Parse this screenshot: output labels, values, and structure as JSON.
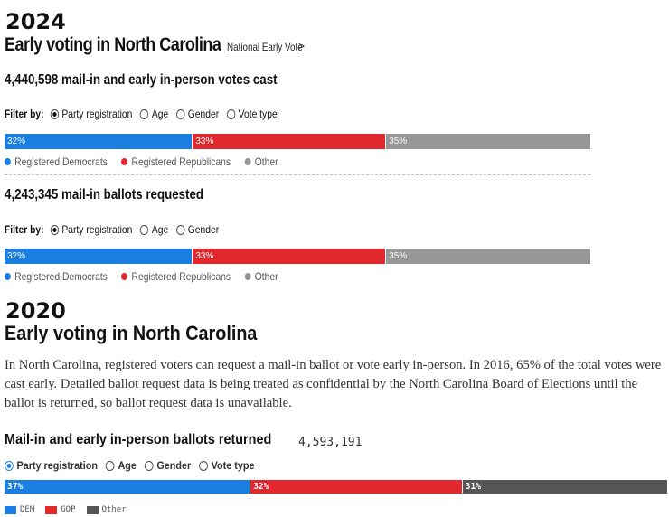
{
  "section2024": {
    "year": "2024",
    "title": "Early voting in North Carolina",
    "nav_link": "National Early Vote",
    "nav_chevron": ">",
    "block1": {
      "count": "4,440,598",
      "label": "mail-in and early in-person votes cast",
      "filter_label": "Filter by:",
      "options": [
        "Party registration",
        "Age",
        "Gender",
        "Vote type"
      ],
      "selected": "Party registration",
      "bar": [
        {
          "label": "32%",
          "value": 32,
          "color": "#1a7fe0"
        },
        {
          "label": "33%",
          "value": 33,
          "color": "#e0282d"
        },
        {
          "label": "35%",
          "value": 35,
          "color": "#969696"
        }
      ],
      "legend": [
        {
          "label": "Registered Democrats",
          "color": "#1a7fe0"
        },
        {
          "label": "Registered Republicans",
          "color": "#e0282d"
        },
        {
          "label": "Other",
          "color": "#969696"
        }
      ]
    },
    "block2": {
      "count": "4,243,345",
      "label": "mail-in ballots requested",
      "filter_label": "Filter by:",
      "options": [
        "Party registration",
        "Age",
        "Gender"
      ],
      "selected": "Party registration",
      "bar": [
        {
          "label": "32%",
          "value": 32,
          "color": "#1a7fe0"
        },
        {
          "label": "33%",
          "value": 33,
          "color": "#e0282d"
        },
        {
          "label": "35%",
          "value": 35,
          "color": "#969696"
        }
      ],
      "legend": [
        {
          "label": "Registered Democrats",
          "color": "#1a7fe0"
        },
        {
          "label": "Registered Republicans",
          "color": "#e0282d"
        },
        {
          "label": "Other",
          "color": "#969696"
        }
      ]
    }
  },
  "section2020": {
    "year": "2020",
    "title": "Early voting in North Carolina",
    "paragraph": "In North Carolina, registered voters can request a mail-in ballot or vote early in-person. In 2016, 65% of the total votes were cast early. Detailed ballot request data is being treated as confidential by the North Carolina Board of Elections until the ballot is returned, so ballot request data is unavailable.",
    "returned_label": "Mail-in and early in-person ballots returned",
    "returned_count": "4,593,191",
    "options": [
      "Party registration",
      "Age",
      "Gender",
      "Vote type"
    ],
    "selected": "Party registration",
    "bar": [
      {
        "label": "37%",
        "value": 37,
        "color": "#1a7fe0"
      },
      {
        "label": "32%",
        "value": 32,
        "color": "#e0282d"
      },
      {
        "label": "31%",
        "value": 31,
        "color": "#555555"
      }
    ],
    "legend": [
      {
        "label": "DEM",
        "color": "#1a7fe0"
      },
      {
        "label": "GOP",
        "color": "#e0282d"
      },
      {
        "label": "Other",
        "color": "#555555"
      }
    ]
  }
}
